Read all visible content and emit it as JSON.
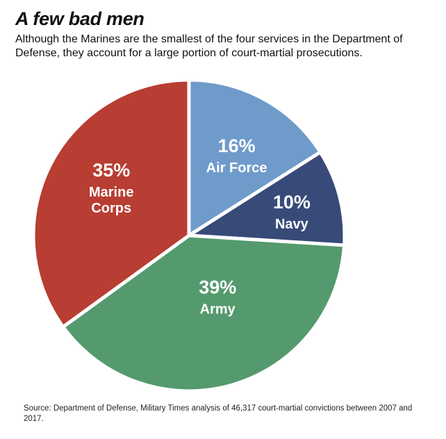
{
  "title": "A few bad men",
  "subtitle": "Although the Marines are the smallest of the four services in the Department of Defense, they account for a large portion of court-martial prosecutions.",
  "source": "Source: Department of Defense, Military Times analysis of 46,317 court-martial convictions between 2007 and 2017.",
  "chart_data": {
    "type": "pie",
    "title": "A few bad men",
    "unit": "%",
    "slices": [
      {
        "label": "Air Force",
        "value": 16,
        "display": "16%",
        "name_lines": [
          "Air Force"
        ],
        "color": "#6f9bcb"
      },
      {
        "label": "Navy",
        "value": 10,
        "display": "10%",
        "name_lines": [
          "Navy"
        ],
        "color": "#384a78"
      },
      {
        "label": "Army",
        "value": 39,
        "display": "39%",
        "name_lines": [
          "Army"
        ],
        "color": "#549a6e"
      },
      {
        "label": "Marine Corps",
        "value": 35,
        "display": "35%",
        "name_lines": [
          "Marine",
          "Corps"
        ],
        "color": "#b83d32"
      }
    ]
  }
}
